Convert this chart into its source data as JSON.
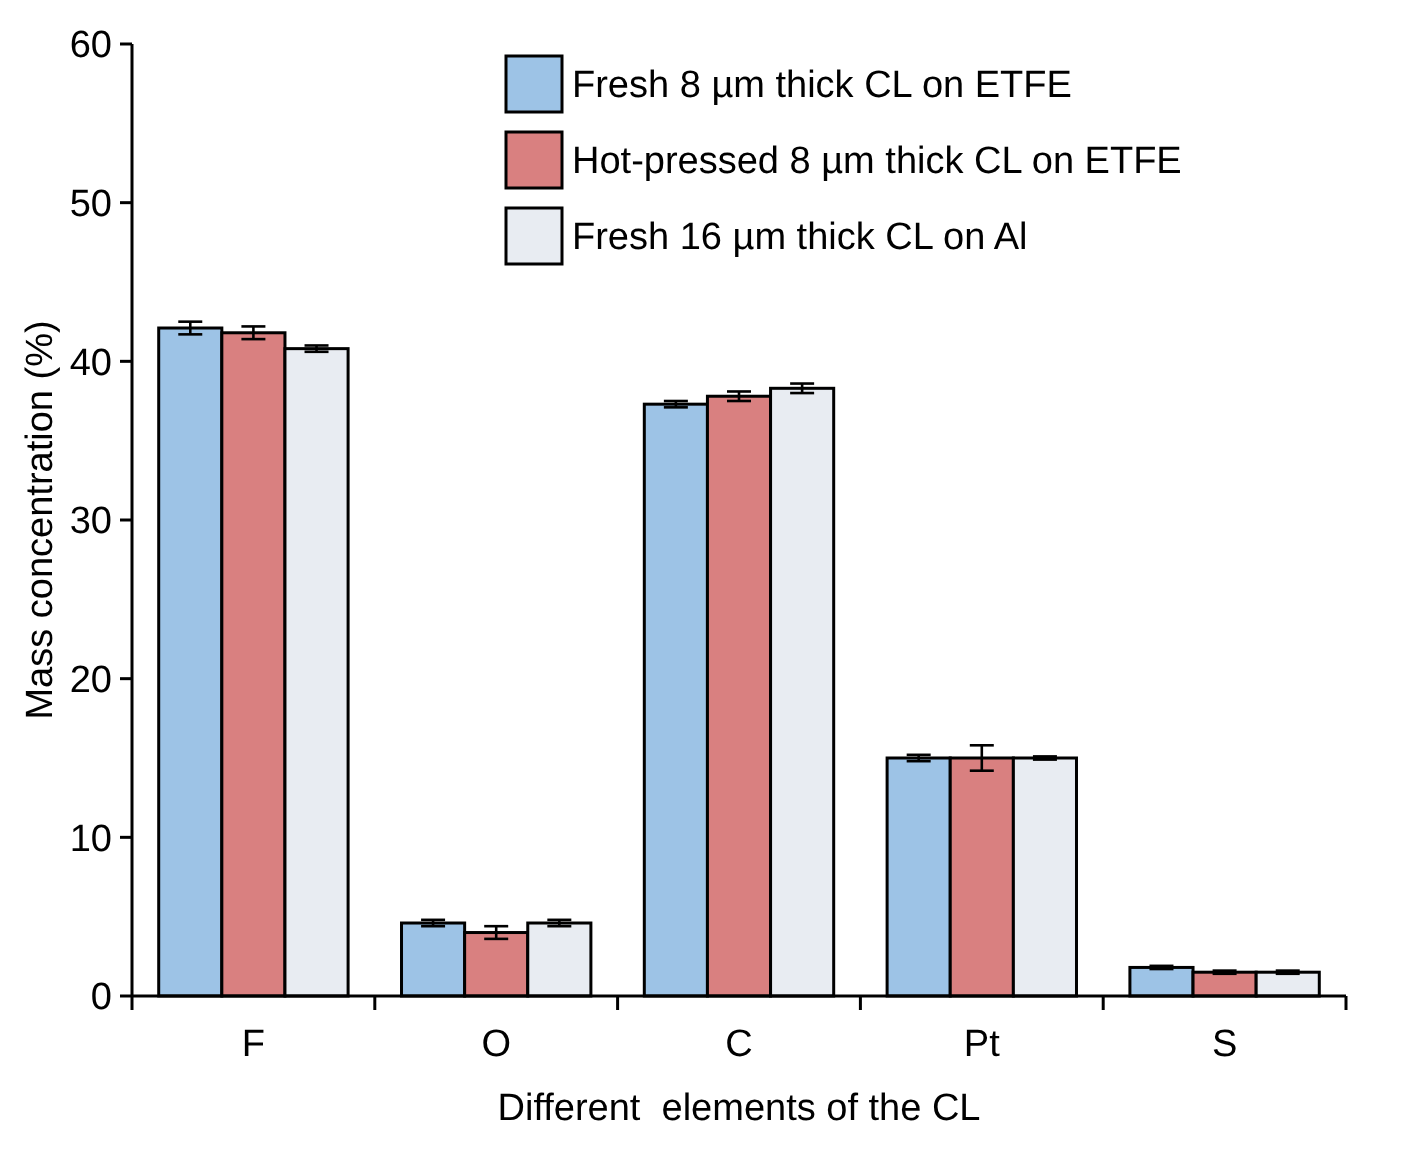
{
  "chart_data": {
    "type": "bar",
    "xlabel": "Different  elements of the CL",
    "ylabel": "Mass concentration (%)",
    "categories": [
      "F",
      "O",
      "C",
      "Pt",
      "S"
    ],
    "series": [
      {
        "name": "Fresh 8 µm thick CL on ETFE",
        "color": "#9dc3e6",
        "values": [
          42.1,
          4.6,
          37.3,
          15.0,
          1.8
        ],
        "errors": [
          0.4,
          0.2,
          0.2,
          0.2,
          0.1
        ]
      },
      {
        "name": "Hot-pressed 8 µm thick CL on ETFE",
        "color": "#d98080",
        "values": [
          41.8,
          4.0,
          37.8,
          15.0,
          1.5
        ],
        "errors": [
          0.4,
          0.4,
          0.3,
          0.8,
          0.1
        ]
      },
      {
        "name": "Fresh 16 µm thick CL on Al",
        "color": "#e8ecf2",
        "values": [
          40.8,
          4.6,
          38.3,
          15.0,
          1.5
        ],
        "errors": [
          0.2,
          0.2,
          0.3,
          0.1,
          0.1
        ]
      }
    ],
    "ylim": [
      0,
      60
    ],
    "yticks": [
      0,
      10,
      20,
      30,
      40,
      50,
      60
    ],
    "legend": "top right"
  }
}
